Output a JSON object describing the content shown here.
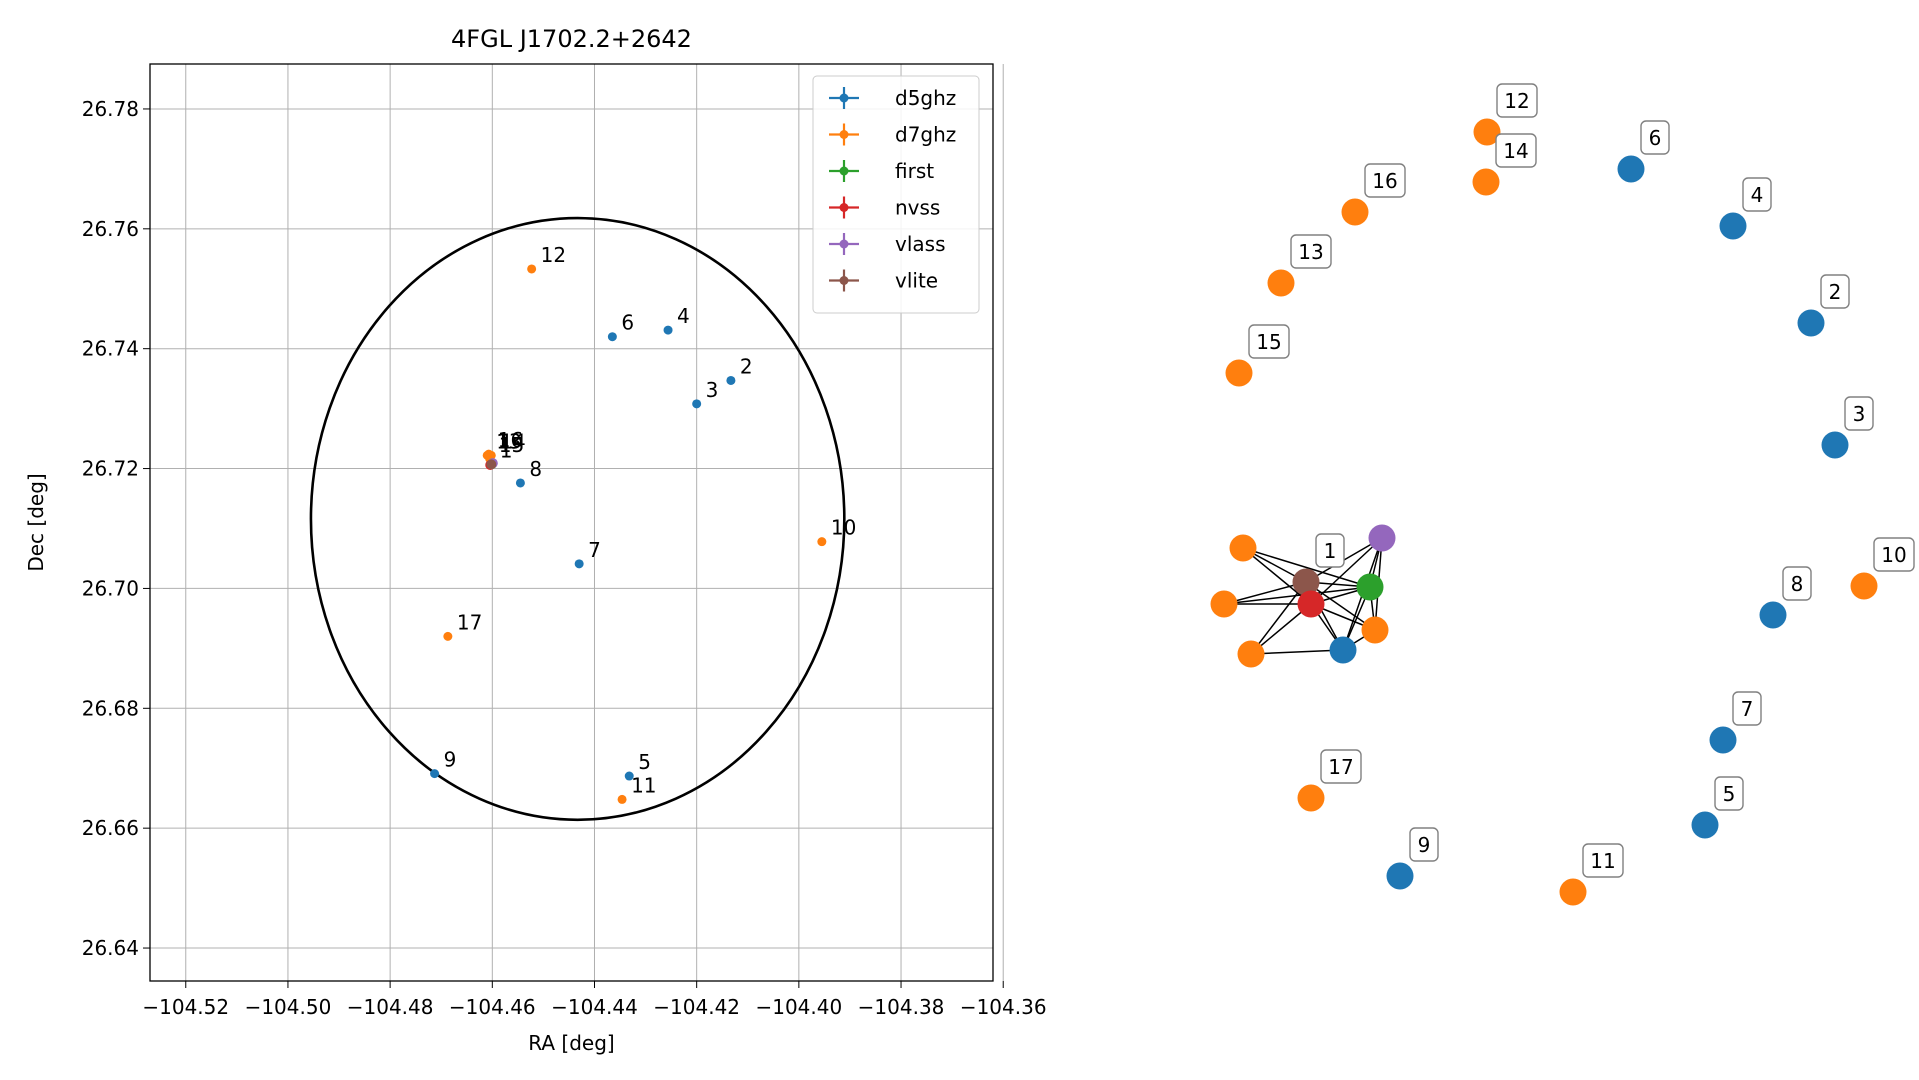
{
  "chart_data": [
    {
      "type": "scatter",
      "title": "4FGL J1702.2+2642",
      "xlabel": "RA [deg]",
      "ylabel": "Dec [deg]",
      "xlim": [
        -104.527,
        -104.362
      ],
      "ylim": [
        26.6345,
        26.7875
      ],
      "grid": true,
      "legend_position": "top-right",
      "xticks": [
        -104.52,
        -104.5,
        -104.48,
        -104.46,
        -104.44,
        -104.42,
        -104.4,
        -104.38,
        -104.36
      ],
      "xtick_labels": [
        "−104.52",
        "−104.50",
        "−104.48",
        "−104.46",
        "−104.44",
        "−104.42",
        "−104.40",
        "−104.38",
        "−104.36"
      ],
      "yticks": [
        26.64,
        26.66,
        26.68,
        26.7,
        26.72,
        26.74,
        26.76,
        26.78
      ],
      "ytick_labels": [
        "26.64",
        "26.66",
        "26.68",
        "26.70",
        "26.72",
        "26.74",
        "26.76",
        "26.78"
      ],
      "ellipse": {
        "center": [
          -104.4433,
          26.7116
        ],
        "semi_axis_ra": 0.0522,
        "semi_axis_dec": 0.0502,
        "color": "#000000"
      },
      "series": [
        {
          "name": "d5ghz",
          "color": "#1f77b4",
          "points": [
            {
              "label": "1",
              "x": -104.4603,
              "y": 26.7207
            },
            {
              "label": "2",
              "x": -104.4133,
              "y": 26.7347
            },
            {
              "label": "3",
              "x": -104.42,
              "y": 26.7308
            },
            {
              "label": "4",
              "x": -104.4256,
              "y": 26.7431
            },
            {
              "label": "5",
              "x": -104.4332,
              "y": 26.6687
            },
            {
              "label": "6",
              "x": -104.4365,
              "y": 26.742
            },
            {
              "label": "7",
              "x": -104.443,
              "y": 26.7041
            },
            {
              "label": "8",
              "x": -104.4545,
              "y": 26.7176
            },
            {
              "label": "9",
              "x": -104.4713,
              "y": 26.6691
            }
          ]
        },
        {
          "name": "d7ghz",
          "color": "#ff7f0e",
          "points": [
            {
              "label": "10",
              "x": -104.3955,
              "y": 26.7078
            },
            {
              "label": "11",
              "x": -104.4346,
              "y": 26.6648
            },
            {
              "label": "12",
              "x": -104.4523,
              "y": 26.7533
            },
            {
              "label": "13",
              "x": -104.461,
              "y": 26.7222
            },
            {
              "label": "14",
              "x": -104.4602,
              "y": 26.7222
            },
            {
              "label": "15",
              "x": -104.4605,
              "y": 26.7216
            },
            {
              "label": "16",
              "x": -104.4607,
              "y": 26.7224
            },
            {
              "label": "17",
              "x": -104.4687,
              "y": 26.692
            }
          ]
        },
        {
          "name": "first",
          "color": "#2ca02c",
          "points": [
            {
              "label": "",
              "x": -104.46,
              "y": 26.7208
            }
          ]
        },
        {
          "name": "nvss",
          "color": "#d62728",
          "points": [
            {
              "label": "",
              "x": -104.4604,
              "y": 26.7206
            }
          ]
        },
        {
          "name": "vlass",
          "color": "#9467bd",
          "points": [
            {
              "label": "",
              "x": -104.4599,
              "y": 26.7209
            }
          ]
        },
        {
          "name": "vlite",
          "color": "#8c564b",
          "points": [
            {
              "label": "",
              "x": -104.4602,
              "y": 26.7207
            }
          ]
        }
      ]
    },
    {
      "type": "network",
      "nodes": [
        {
          "id": "1",
          "group": "vlite",
          "label": "1"
        },
        {
          "id": "nvss",
          "group": "nvss",
          "label": ""
        },
        {
          "id": "first",
          "group": "first",
          "label": ""
        },
        {
          "id": "vlass",
          "group": "vlass",
          "label": ""
        },
        {
          "id": "d5",
          "group": "d5ghz",
          "label": ""
        },
        {
          "id": "o1",
          "group": "d7ghz",
          "label": ""
        },
        {
          "id": "o2",
          "group": "d7ghz",
          "label": ""
        },
        {
          "id": "o3",
          "group": "d7ghz",
          "label": ""
        },
        {
          "id": "o4",
          "group": "d7ghz",
          "label": ""
        },
        {
          "id": "12",
          "group": "d7ghz",
          "label": "12"
        },
        {
          "id": "14",
          "group": "d7ghz",
          "label": "14"
        },
        {
          "id": "16",
          "group": "d7ghz",
          "label": "16"
        },
        {
          "id": "13",
          "group": "d7ghz",
          "label": "13"
        },
        {
          "id": "15",
          "group": "d7ghz",
          "label": "15"
        },
        {
          "id": "6",
          "group": "d5ghz",
          "label": "6"
        },
        {
          "id": "4",
          "group": "d5ghz",
          "label": "4"
        },
        {
          "id": "2",
          "group": "d5ghz",
          "label": "2"
        },
        {
          "id": "3",
          "group": "d5ghz",
          "label": "3"
        },
        {
          "id": "10",
          "group": "d7ghz",
          "label": "10"
        },
        {
          "id": "8",
          "group": "d5ghz",
          "label": "8"
        },
        {
          "id": "7",
          "group": "d5ghz",
          "label": "7"
        },
        {
          "id": "5",
          "group": "d5ghz",
          "label": "5"
        },
        {
          "id": "11",
          "group": "d7ghz",
          "label": "11"
        },
        {
          "id": "9",
          "group": "d5ghz",
          "label": "9"
        },
        {
          "id": "17",
          "group": "d7ghz",
          "label": "17"
        }
      ],
      "edges": [
        [
          "1",
          "nvss"
        ],
        [
          "1",
          "first"
        ],
        [
          "1",
          "vlass"
        ],
        [
          "1",
          "d5"
        ],
        [
          "1",
          "o1"
        ],
        [
          "1",
          "o2"
        ],
        [
          "1",
          "o3"
        ],
        [
          "1",
          "o4"
        ],
        [
          "nvss",
          "first"
        ],
        [
          "nvss",
          "vlass"
        ],
        [
          "nvss",
          "d5"
        ],
        [
          "nvss",
          "o1"
        ],
        [
          "nvss",
          "o2"
        ],
        [
          "nvss",
          "o3"
        ],
        [
          "nvss",
          "o4"
        ],
        [
          "first",
          "vlass"
        ],
        [
          "first",
          "d5"
        ],
        [
          "first",
          "o1"
        ],
        [
          "first",
          "o2"
        ],
        [
          "first",
          "o4"
        ],
        [
          "vlass",
          "d5"
        ],
        [
          "vlass",
          "o4"
        ],
        [
          "d5",
          "o4"
        ],
        [
          "d5",
          "o3"
        ]
      ]
    }
  ]
}
